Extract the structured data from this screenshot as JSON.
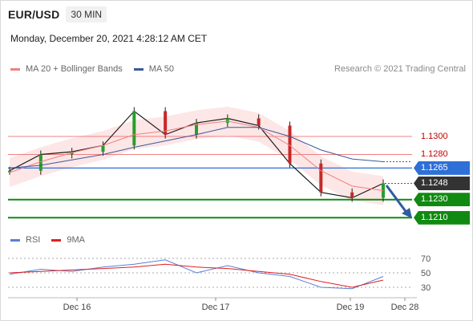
{
  "header": {
    "pair": "EUR/USD",
    "timeframe": "30 MIN"
  },
  "timestamp": "Monday, December 20, 2021 4:28:12 AM CET",
  "legend": {
    "ma20": "MA 20 + Bollinger Bands",
    "ma50": "MA 50",
    "ma20_color": "#f08080",
    "ma50_color": "#3a5a9a"
  },
  "credit": "Research © 2021 Trading Central",
  "rsi_legend": {
    "rsi": "RSI",
    "ma": "9MA",
    "rsi_color": "#5b7fd6",
    "ma_color": "#e02020"
  },
  "levels": [
    {
      "label": "1.1300",
      "value": 1.13,
      "style": "red-line"
    },
    {
      "label": "1.1280",
      "value": 1.128,
      "style": "red-line"
    },
    {
      "label": "1.1265",
      "value": 1.1265,
      "style": "blue-tag"
    },
    {
      "label": "1.1248",
      "value": 1.1248,
      "style": "dark-tag"
    },
    {
      "label": "1.1230",
      "value": 1.123,
      "style": "green-tag"
    },
    {
      "label": "1.1210",
      "value": 1.121,
      "style": "green-tag"
    }
  ],
  "x_labels": [
    "Dec 16",
    "Dec 17",
    "Dec 19",
    "Dec 28"
  ],
  "rsi_ticks": [
    "70",
    "50",
    "30"
  ],
  "chart_data": {
    "type": "line",
    "title": "EUR/USD 30 MIN",
    "xlabel": "",
    "ylabel": "",
    "ylim": [
      1.12,
      1.135
    ],
    "x": [
      "Dec 16",
      "",
      "",
      "",
      "",
      "",
      "Dec 17",
      "",
      "",
      "",
      "",
      "",
      "Dec 19"
    ],
    "series": [
      {
        "name": "EUR/USD",
        "values": [
          1.1262,
          1.128,
          1.1283,
          1.129,
          1.1328,
          1.1302,
          1.1315,
          1.132,
          1.1312,
          1.127,
          1.1238,
          1.1232,
          1.1248
        ]
      },
      {
        "name": "MA 20 + Bollinger Bands",
        "values": [
          1.126,
          1.1272,
          1.1282,
          1.129,
          1.1302,
          1.1306,
          1.1313,
          1.1317,
          1.131,
          1.129,
          1.1262,
          1.1245,
          1.124
        ]
      },
      {
        "name": "MA 50",
        "values": [
          1.1265,
          1.1268,
          1.1274,
          1.128,
          1.1288,
          1.1295,
          1.1302,
          1.131,
          1.131,
          1.13,
          1.1285,
          1.1275,
          1.1272
        ]
      }
    ],
    "rsi": {
      "ylim": [
        10,
        90
      ],
      "series": [
        {
          "name": "RSI",
          "values": [
            48,
            55,
            52,
            58,
            62,
            68,
            50,
            60,
            50,
            45,
            30,
            28,
            45
          ]
        },
        {
          "name": "9MA",
          "values": [
            50,
            52,
            54,
            56,
            58,
            62,
            58,
            56,
            52,
            48,
            38,
            30,
            40
          ]
        }
      ]
    }
  }
}
